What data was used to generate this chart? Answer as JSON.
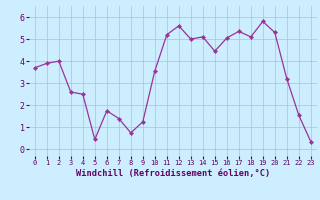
{
  "x": [
    0,
    1,
    2,
    3,
    4,
    5,
    6,
    7,
    8,
    9,
    10,
    11,
    12,
    13,
    14,
    15,
    16,
    17,
    18,
    19,
    20,
    21,
    22,
    23
  ],
  "y": [
    3.7,
    3.9,
    4.0,
    2.6,
    2.5,
    0.45,
    1.75,
    1.4,
    0.75,
    1.25,
    3.55,
    5.2,
    5.6,
    5.0,
    5.1,
    4.45,
    5.05,
    5.35,
    5.1,
    5.8,
    5.3,
    3.2,
    1.55,
    0.35
  ],
  "line_color": "#993399",
  "marker_color": "#993399",
  "bg_color": "#cceeff",
  "grid_color": "#99cccc",
  "xlabel": "Windchill (Refroidissement éolien,°C)",
  "xlabel_color": "#660066",
  "tick_color": "#660066",
  "xlim": [
    -0.5,
    23.5
  ],
  "ylim": [
    -0.3,
    6.5
  ],
  "yticks": [
    0,
    1,
    2,
    3,
    4,
    5,
    6
  ],
  "xticks": [
    0,
    1,
    2,
    3,
    4,
    5,
    6,
    7,
    8,
    9,
    10,
    11,
    12,
    13,
    14,
    15,
    16,
    17,
    18,
    19,
    20,
    21,
    22,
    23
  ]
}
